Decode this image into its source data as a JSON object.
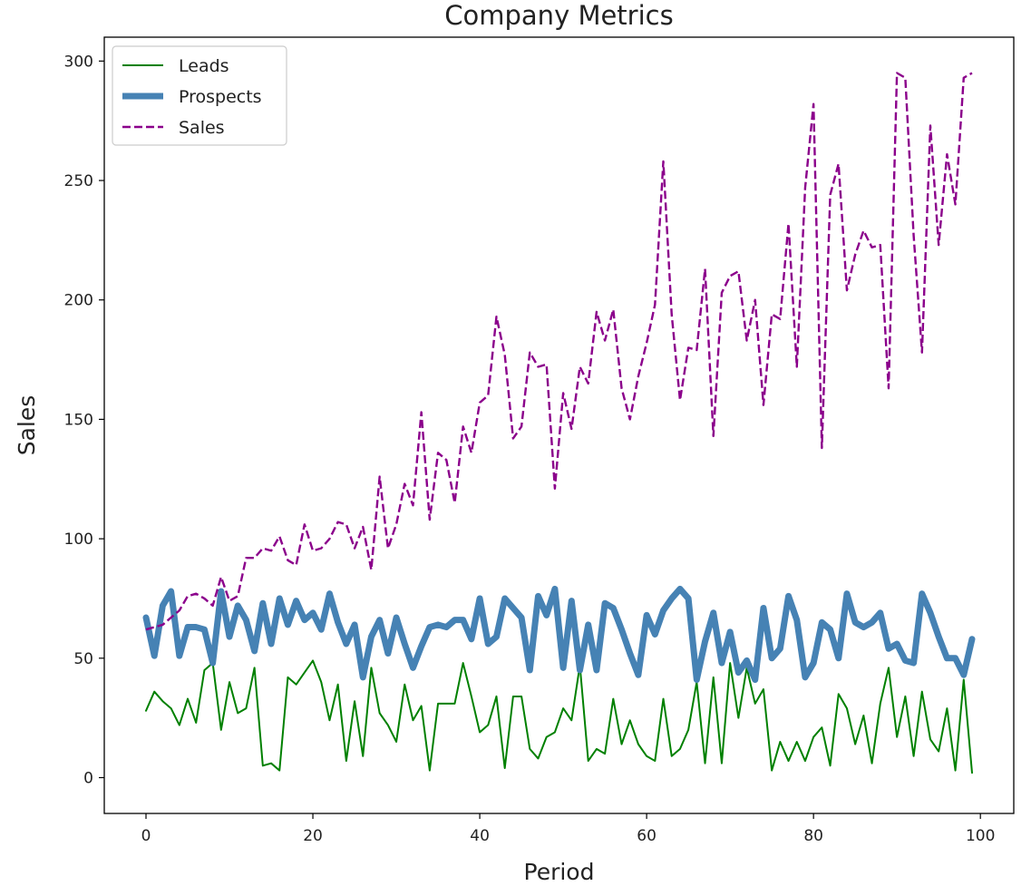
{
  "chart_data": {
    "type": "line",
    "title": "Company Metrics",
    "xlabel": "Period",
    "ylabel": "Sales",
    "xlim": [
      -5,
      104
    ],
    "ylim": [
      -15,
      310
    ],
    "x_ticks": [
      0,
      20,
      40,
      60,
      80,
      100
    ],
    "y_ticks": [
      0,
      50,
      100,
      150,
      200,
      250,
      300
    ],
    "grid": false,
    "legend": "top-left",
    "series": [
      {
        "name": "Leads",
        "color": "#008000",
        "line_style": "solid",
        "line_width": 2,
        "values": [
          28,
          36,
          32,
          29,
          22,
          33,
          23,
          45,
          48,
          20,
          40,
          27,
          29,
          46,
          5,
          6,
          3,
          42,
          39,
          44,
          49,
          40,
          24,
          39,
          7,
          32,
          9,
          46,
          27,
          22,
          15,
          39,
          24,
          30,
          3,
          31,
          31,
          31,
          48,
          34,
          19,
          22,
          34,
          4,
          34,
          34,
          12,
          8,
          17,
          19,
          29,
          24,
          47,
          7,
          12,
          10,
          33,
          14,
          24,
          14,
          9,
          7,
          33,
          9,
          12,
          20,
          40,
          6,
          42,
          6,
          48,
          25,
          46,
          31,
          37,
          3,
          15,
          7,
          15,
          7,
          17,
          21,
          5,
          35,
          29,
          14,
          26,
          6,
          31,
          46,
          17,
          34,
          9,
          36,
          16,
          11,
          29,
          3,
          41,
          2
        ]
      },
      {
        "name": "Prospects",
        "color": "#4682b4",
        "line_style": "solid",
        "line_width": 7,
        "values": [
          67,
          51,
          72,
          78,
          51,
          63,
          63,
          62,
          48,
          78,
          59,
          72,
          66,
          53,
          73,
          56,
          75,
          64,
          74,
          66,
          69,
          62,
          77,
          65,
          56,
          64,
          42,
          59,
          66,
          52,
          67,
          56,
          46,
          55,
          63,
          64,
          63,
          66,
          66,
          58,
          75,
          56,
          59,
          75,
          71,
          67,
          45,
          76,
          68,
          79,
          46,
          74,
          45,
          64,
          45,
          73,
          71,
          62,
          52,
          43,
          68,
          60,
          70,
          75,
          79,
          75,
          41,
          57,
          69,
          48,
          61,
          44,
          49,
          41,
          71,
          50,
          54,
          76,
          66,
          42,
          48,
          65,
          62,
          50,
          77,
          65,
          63,
          65,
          69,
          54,
          56,
          49,
          48,
          77,
          69,
          59,
          50,
          50,
          43,
          58
        ]
      },
      {
        "name": "Sales",
        "color": "#8b008b",
        "line_style": "dashed",
        "line_width": 2.4,
        "values": [
          62,
          63,
          64,
          67,
          70,
          76,
          77,
          75,
          72,
          84,
          74,
          76,
          92,
          92,
          96,
          95,
          101,
          91,
          89,
          106,
          95,
          96,
          100,
          107,
          106,
          96,
          105,
          87,
          126,
          96,
          106,
          123,
          114,
          153,
          108,
          136,
          133,
          115,
          147,
          136,
          157,
          160,
          193,
          177,
          142,
          147,
          178,
          172,
          173,
          121,
          161,
          146,
          172,
          165,
          195,
          183,
          196,
          163,
          150,
          168,
          182,
          198,
          258,
          194,
          158,
          180,
          179,
          213,
          143,
          203,
          210,
          212,
          183,
          200,
          156,
          194,
          192,
          232,
          172,
          247,
          282,
          138,
          244,
          257,
          204,
          219,
          229,
          222,
          223,
          163,
          295,
          293,
          227,
          178,
          273,
          223,
          261,
          240,
          293,
          295
        ]
      }
    ]
  }
}
